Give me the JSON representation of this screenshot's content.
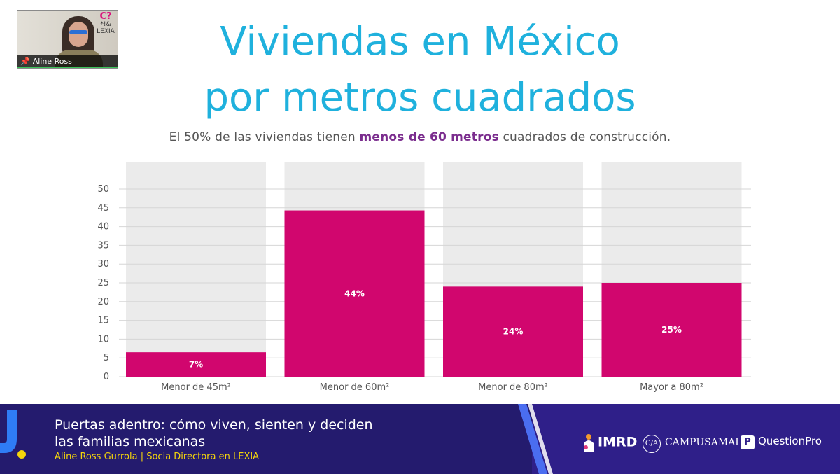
{
  "slide": {
    "title_line1": "Viviendas en México",
    "title_line2": "por metros cuadrados",
    "subtitle_pre": "El 50% de las viviendas tienen ",
    "subtitle_highlight": "menos de 60 metros",
    "subtitle_post": " cuadrados de construcción."
  },
  "chart_data": {
    "type": "bar",
    "categories": [
      "Menor de 45m²",
      "Menor de 60m²",
      "Menor de 80m²",
      "Mayor a 80m²"
    ],
    "values": [
      6.5,
      44.3,
      24,
      25
    ],
    "data_labels": [
      "7%",
      "44%",
      "24%",
      "25%"
    ],
    "ylim": [
      0,
      50
    ],
    "yticks": [
      0,
      5,
      10,
      15,
      20,
      25,
      30,
      35,
      40,
      45,
      50
    ],
    "grid": true,
    "bar_color": "#d1066e",
    "background_column_color": "#ebebeb",
    "xlabel": "",
    "ylabel": ""
  },
  "webcam": {
    "participant_name": "Aline Ross",
    "pin_icon": "pin-icon"
  },
  "footer": {
    "title_line1": "Puertas adentro: cómo viven, sienten y deciden",
    "title_line2": "las familias mexicanas",
    "speaker": "Aline Ross Gurrola | Socia Directora en LEXIA",
    "logo_imrd": "IMRD",
    "logo_campus_mark": "C/A",
    "logo_campus": "CAMPUSAMAI",
    "logo_qp_mark": "P",
    "logo_qp": "QuestionPro"
  },
  "colors": {
    "title": "#1fb1dd",
    "highlight": "#7b2d8e",
    "bar": "#d1066e",
    "footer_bg": "#241b6e",
    "footer_accent": "#f5d60a"
  }
}
